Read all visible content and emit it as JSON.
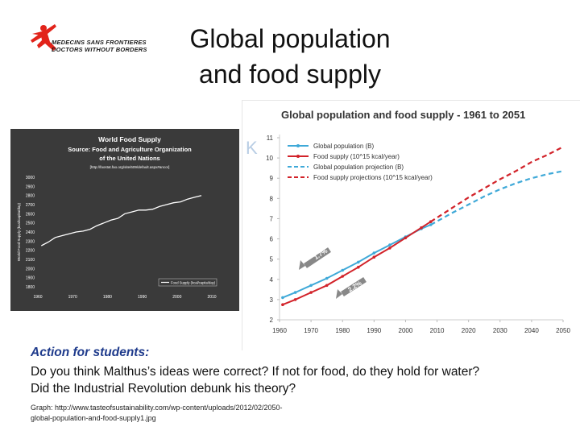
{
  "header": {
    "logo_line1": "MEDECINS SANS FRONTIERES",
    "logo_line2": "DOCTORS WITHOUT BORDERS",
    "title_line1": "Global population",
    "title_line2": "and food supply"
  },
  "colors": {
    "msf_red": "#e2231a",
    "population": "#3fa9d8",
    "food": "#d2232a",
    "action_blue": "#1f3b8c",
    "dark_bg": "#3a3a3a"
  },
  "chart_data": [
    {
      "type": "line",
      "title": "World Food Supply",
      "subtitle_line1": "Source: Food and Agriculture Organization",
      "subtitle_line2": "of the United Nations",
      "url_note": "[http://faostat.fao.org/site/609/default.aspx#ancor]",
      "ylabel": "World Food Supply (kcal/capita/day)",
      "xlabel": "",
      "x_ticks": [
        "1960",
        "1970",
        "1980",
        "1990",
        "2000",
        "2010"
      ],
      "y_ticks": [
        "1800",
        "1900",
        "2000",
        "2100",
        "2200",
        "2300",
        "2400",
        "2500",
        "2600",
        "2700",
        "2800",
        "2900",
        "3000"
      ],
      "xlim": [
        1960,
        2010
      ],
      "ylim": [
        1800,
        3000
      ],
      "legend": "Food Supply (kcal/capita/day)",
      "series": [
        {
          "name": "Food Supply (kcal/capita/day)",
          "x": [
            1961,
            1963,
            1965,
            1967,
            1969,
            1971,
            1973,
            1975,
            1977,
            1979,
            1981,
            1983,
            1985,
            1987,
            1989,
            1991,
            1993,
            1995,
            1997,
            1999,
            2001,
            2003,
            2005,
            2007
          ],
          "values": [
            2250,
            2290,
            2340,
            2360,
            2380,
            2400,
            2410,
            2430,
            2470,
            2500,
            2530,
            2550,
            2600,
            2620,
            2640,
            2640,
            2650,
            2680,
            2700,
            2720,
            2730,
            2760,
            2780,
            2800
          ]
        }
      ]
    },
    {
      "type": "line",
      "title": "Global population  and food supply - 1961 to 2051",
      "xlabel": "",
      "ylabel": "",
      "x_ticks": [
        "1960",
        "1970",
        "1980",
        "1990",
        "2000",
        "2010",
        "2020",
        "2030",
        "2040",
        "2050"
      ],
      "y_ticks": [
        "2",
        "3",
        "4",
        "5",
        "6",
        "7",
        "8",
        "9",
        "10",
        "11"
      ],
      "xlim": [
        1960,
        2050
      ],
      "ylim": [
        2,
        11
      ],
      "annotations": [
        "1.7%",
        "2.2%"
      ],
      "series": [
        {
          "name": "Global population (B)",
          "style": "solid-marker",
          "color": "#3fa9d8",
          "x": [
            1961,
            1965,
            1970,
            1975,
            1980,
            1985,
            1990,
            1995,
            2000,
            2005,
            2008
          ],
          "values": [
            3.1,
            3.35,
            3.7,
            4.05,
            4.45,
            4.85,
            5.3,
            5.7,
            6.1,
            6.5,
            6.7
          ]
        },
        {
          "name": "Food supply (10^15 kcal/year)",
          "style": "solid-marker",
          "color": "#d2232a",
          "x": [
            1961,
            1965,
            1970,
            1975,
            1980,
            1985,
            1990,
            1995,
            2000,
            2005,
            2008
          ],
          "values": [
            2.75,
            3.0,
            3.35,
            3.7,
            4.15,
            4.6,
            5.1,
            5.55,
            6.05,
            6.55,
            6.85
          ]
        },
        {
          "name": "Global population projection (B)",
          "style": "dashed",
          "color": "#3fa9d8",
          "x": [
            2008,
            2015,
            2020,
            2025,
            2030,
            2035,
            2040,
            2045,
            2050
          ],
          "values": [
            6.7,
            7.3,
            7.7,
            8.1,
            8.45,
            8.75,
            9.0,
            9.2,
            9.35
          ]
        },
        {
          "name": "Food supply projections (10^15 kcal/year)",
          "style": "dashed",
          "color": "#d2232a",
          "x": [
            2008,
            2015,
            2020,
            2025,
            2030,
            2035,
            2040,
            2045,
            2050
          ],
          "values": [
            6.85,
            7.55,
            8.05,
            8.5,
            8.95,
            9.35,
            9.8,
            10.15,
            10.55
          ]
        }
      ]
    }
  ],
  "body": {
    "action_label": "Action for students:",
    "question_line1": "Do you think Malthus’s ideas were correct? If not for food, do they hold for water?",
    "question_line2": "Did the Industrial Revolution debunk his theory?",
    "source_line1": "Graph: http://www.tasteofsustainability.com/wp-content/uploads/2012/02/2050-",
    "source_line2": "global-population-and-food-supply1.jpg"
  }
}
